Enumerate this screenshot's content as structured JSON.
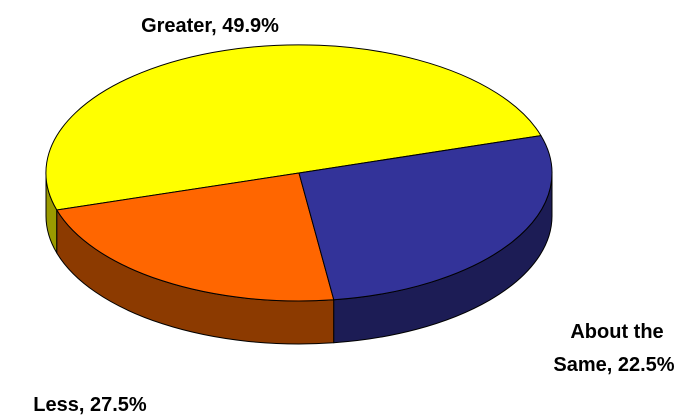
{
  "chart_data": {
    "type": "pie",
    "title": "",
    "is_3d": true,
    "slices": [
      {
        "label": "Greater",
        "value": 49.9,
        "color": "#FFFF00",
        "side_color": "#9A9A00",
        "label_lines": [
          "Greater, 49.9%"
        ]
      },
      {
        "label": "About the Same",
        "value": 22.5,
        "color": "#FF6600",
        "side_color": "#8C3A00",
        "label_lines": [
          "About the",
          "Same, 22.5%"
        ]
      },
      {
        "label": "Less",
        "value": 27.5,
        "color": "#333399",
        "side_color": "#1C1C55",
        "label_lines": [
          "Less, 27.5%"
        ]
      }
    ]
  }
}
